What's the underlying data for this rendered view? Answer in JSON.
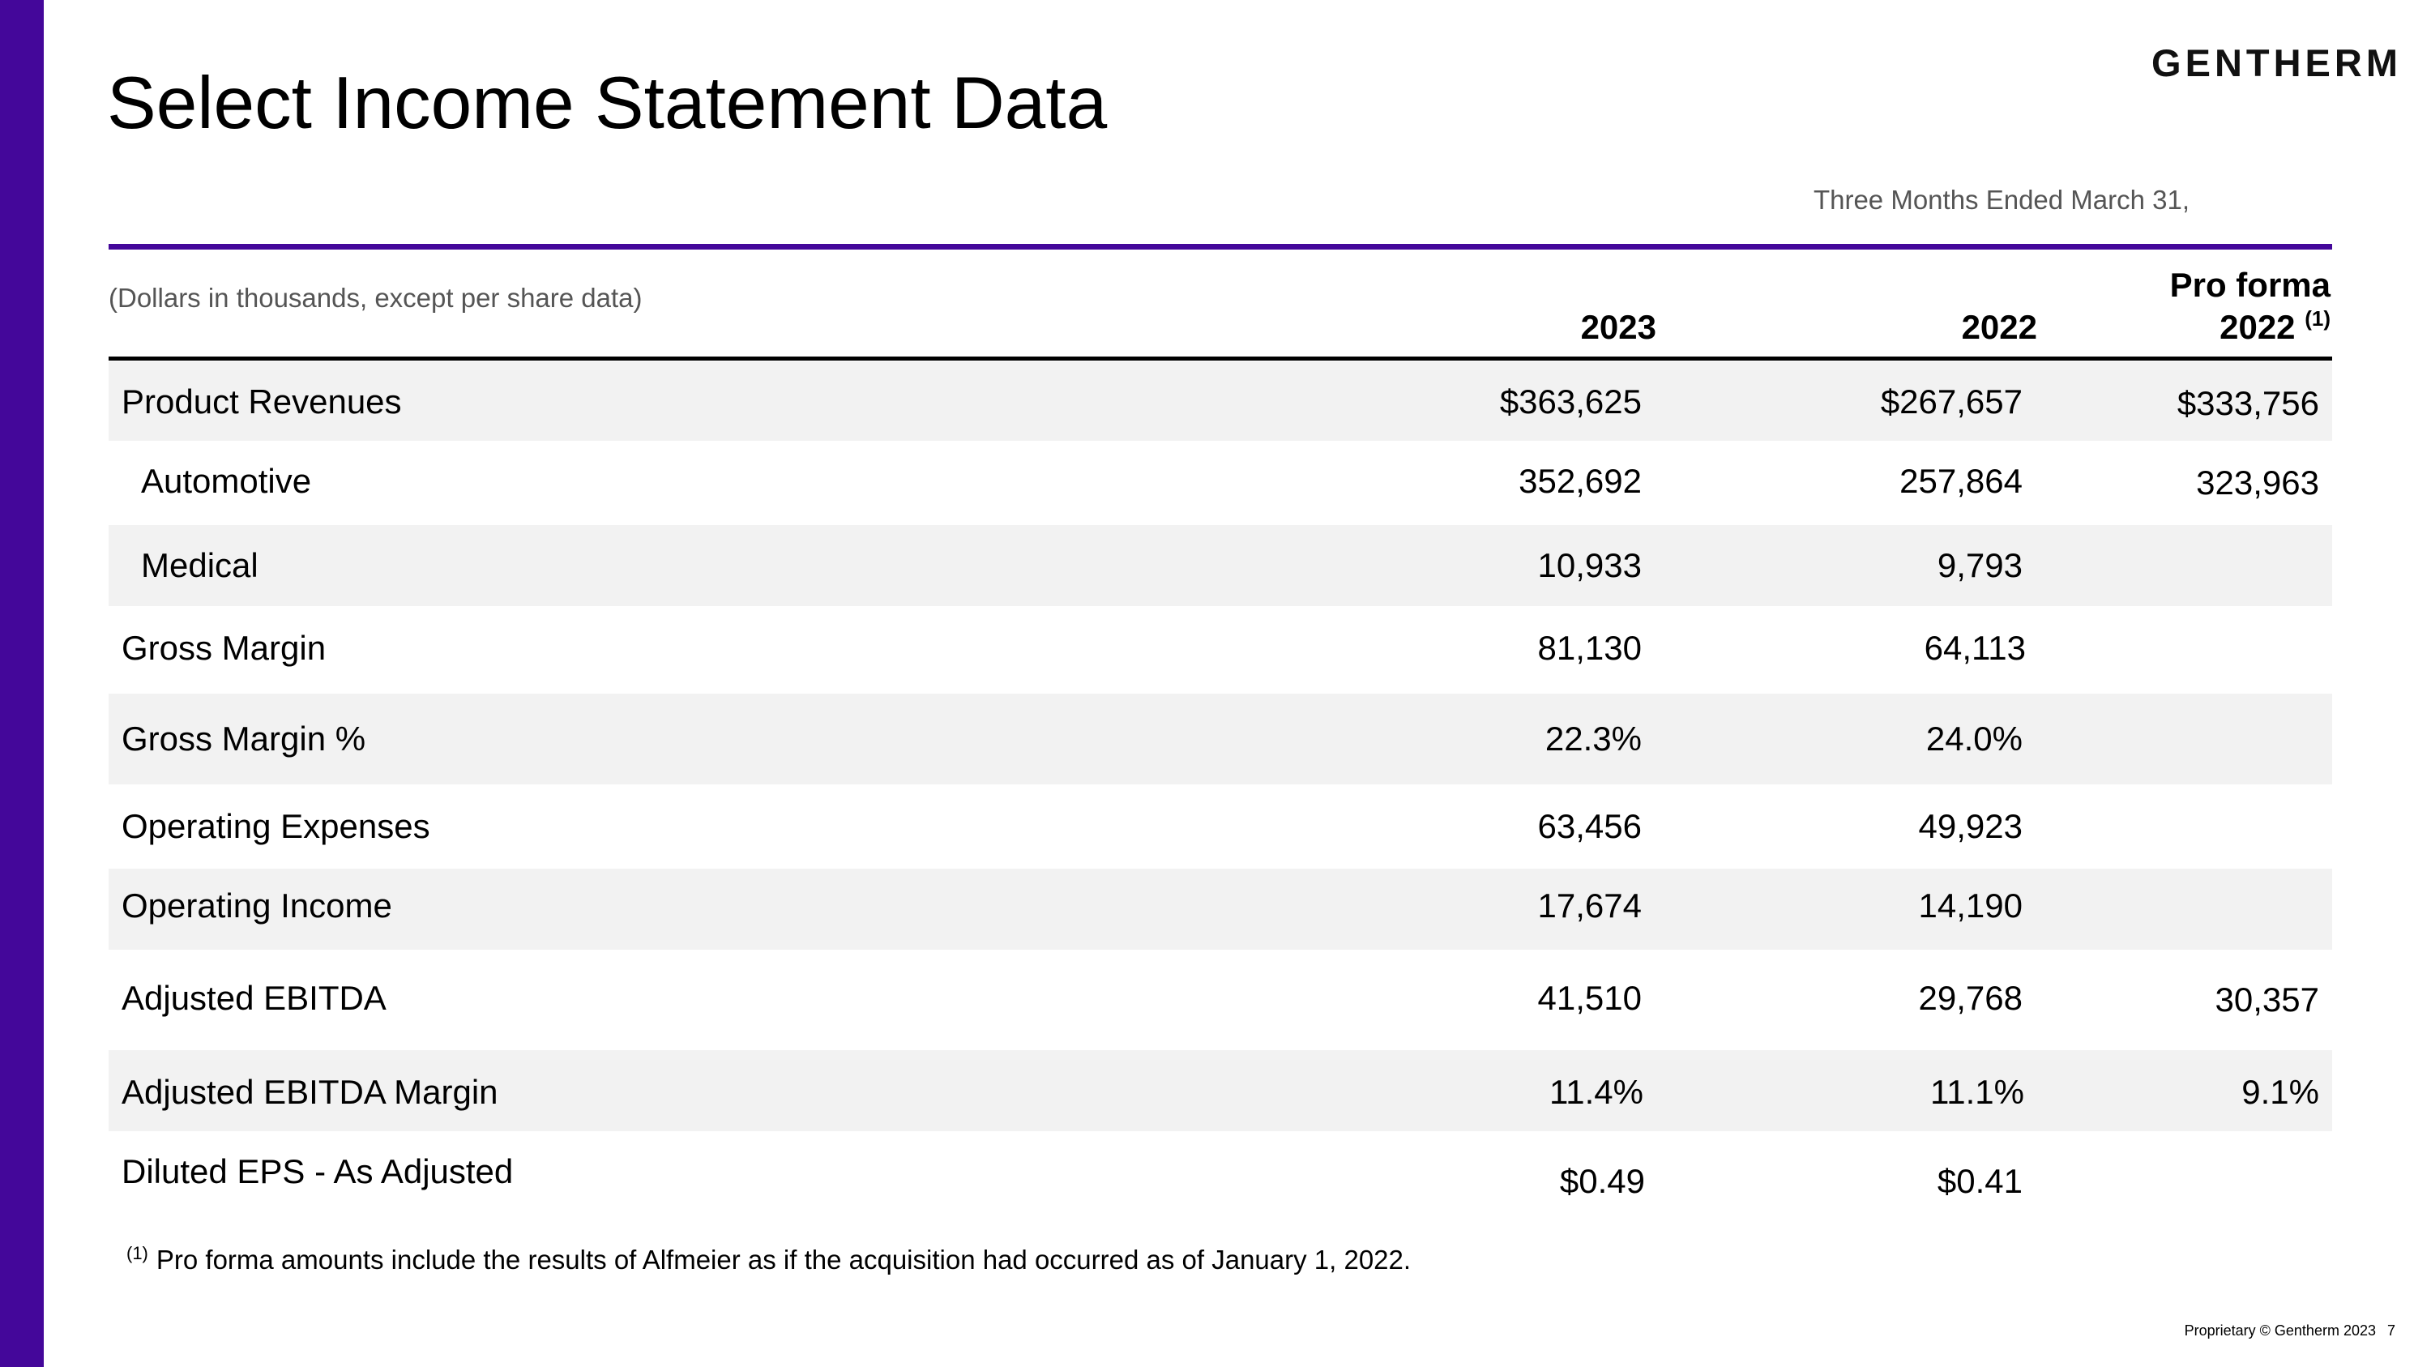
{
  "slide": {
    "title": "Select Income Statement Data",
    "logo_text": "GENTHERM",
    "brand_color": "#44079a"
  },
  "table": {
    "period_header": "Three Months Ended March 31,",
    "units_note": "(Dollars in thousands, except per share data)",
    "columns": {
      "col1": "2023",
      "col2": "2022",
      "col3_line1": "Pro forma",
      "col3_line2": "2022",
      "col3_note": "(1)"
    },
    "rows": [
      {
        "label": "Product Revenues",
        "v2023": "$363,625",
        "v2022": "$267,657",
        "pro_forma": "$333,756"
      },
      {
        "label": "Automotive",
        "v2023": "352,692",
        "v2022": "257,864",
        "pro_forma": "323,963"
      },
      {
        "label": "Medical",
        "v2023": "10,933",
        "v2022": "9,793",
        "pro_forma": ""
      },
      {
        "label": "Gross Margin",
        "v2023": "81,130",
        "v2022": "64,113",
        "pro_forma": ""
      },
      {
        "label": "Gross Margin %",
        "v2023": "22.3%",
        "v2022": "24.0%",
        "pro_forma": ""
      },
      {
        "label": "Operating Expenses",
        "v2023": "63,456",
        "v2022": "49,923",
        "pro_forma": ""
      },
      {
        "label": "Operating Income",
        "v2023": "17,674",
        "v2022": "14,190",
        "pro_forma": ""
      },
      {
        "label": "Adjusted EBITDA",
        "v2023": "41,510",
        "v2022": "29,768",
        "pro_forma": "30,357"
      },
      {
        "label": "Adjusted EBITDA Margin",
        "v2023": "11.4%",
        "v2022": "11.1%",
        "pro_forma": "9.1%"
      },
      {
        "label": "Diluted EPS - As Adjusted",
        "v2023": "$0.49",
        "v2022": "$0.41",
        "pro_forma": ""
      }
    ]
  },
  "footnote": {
    "marker": "(1)",
    "text": "Pro forma amounts include the results of Alfmeier as if the acquisition had occurred as of January 1, 2022."
  },
  "footer": {
    "copyright": "Proprietary © Gentherm 2023",
    "page_number": "7"
  }
}
